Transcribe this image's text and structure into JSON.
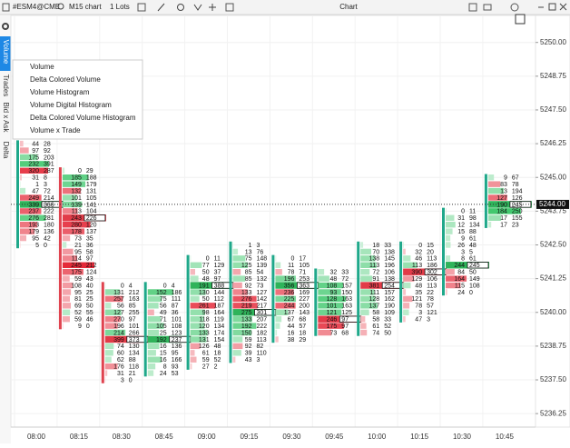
{
  "toolbar": {
    "symbol": "#ESM4@CME",
    "timeframe": "M15 chart",
    "lots": "1 Lots",
    "title": "Chart"
  },
  "side_tabs": [
    "Volume",
    "Trades",
    "Bid x Ask",
    "Delta"
  ],
  "menu": [
    "Volume",
    "Delta Colored Volume",
    "Volume Histogram",
    "Volume Digital Histogram",
    "Delta Colored Volume Histogram",
    "Volume x Trade"
  ],
  "chart_data": {
    "type": "footprint",
    "categories": [
      "08:00",
      "08:15",
      "08:30",
      "08:45",
      "09:00",
      "09:15",
      "09:30",
      "09:45",
      "10:00",
      "10:15",
      "10:30",
      "10:45"
    ],
    "ylim": [
      5235.75,
      5251
    ],
    "yticks": [
      {
        "value": 5250,
        "label": "5250.00"
      },
      {
        "value": 5248.75,
        "label": "5248.75"
      },
      {
        "value": 5247.5,
        "label": "5247.50"
      },
      {
        "value": 5246.25,
        "label": "5246.25"
      },
      {
        "value": 5245,
        "label": "5245.00"
      },
      {
        "value": 5243.75,
        "label": "5243.75"
      },
      {
        "value": 5242.5,
        "label": "5242.50"
      },
      {
        "value": 5241.25,
        "label": "5241.25"
      },
      {
        "value": 5240,
        "label": "5240.00"
      },
      {
        "value": 5238.75,
        "label": "5238.75"
      },
      {
        "value": 5237.5,
        "label": "5237.50"
      },
      {
        "value": 5236.25,
        "label": "5236.25"
      }
    ],
    "tick_size": 0.25,
    "current_price": {
      "value": 5244,
      "label": "5244.00"
    },
    "clusters": [
      {
        "top": 5246.25,
        "rows": [
          [
            44,
            28
          ],
          [
            97,
            92
          ],
          [
            175,
            203
          ],
          [
            232,
            391
          ],
          [
            320,
            287
          ],
          [
            31,
            8
          ],
          [
            1,
            3
          ],
          [
            47,
            72
          ],
          [
            249,
            214
          ],
          [
            339,
            366
          ],
          [
            237,
            222
          ],
          [
            276,
            281
          ],
          [
            193,
            180
          ],
          [
            179,
            136
          ],
          [
            95,
            42
          ],
          [
            5,
            0
          ]
        ]
      },
      {
        "top": 5245.25,
        "rows": [
          [
            0,
            29
          ],
          [
            185,
            188
          ],
          [
            149,
            179
          ],
          [
            132,
            131
          ],
          [
            101,
            105
          ],
          [
            139,
            141
          ],
          [
            113,
            104
          ],
          [
            243,
            226
          ],
          [
            280,
            120
          ],
          [
            178,
            137
          ],
          [
            73,
            35
          ],
          [
            21,
            36
          ],
          [
            95,
            58
          ],
          [
            114,
            97
          ],
          [
            245,
            212
          ],
          [
            175,
            124
          ],
          [
            59,
            43
          ],
          [
            108,
            40
          ],
          [
            95,
            25
          ],
          [
            81,
            25
          ],
          [
            69,
            50
          ],
          [
            52,
            55
          ],
          [
            59,
            46
          ],
          [
            9,
            0
          ]
        ]
      },
      {
        "top": 5241,
        "rows": [
          [
            0,
            4
          ],
          [
            131,
            212
          ],
          [
            257,
            163
          ],
          [
            56,
            85
          ],
          [
            127,
            255
          ],
          [
            270,
            97
          ],
          [
            196,
            101
          ],
          [
            214,
            266
          ],
          [
            399,
            373
          ],
          [
            74,
            130
          ],
          [
            60,
            134
          ],
          [
            62,
            88
          ],
          [
            176,
            118
          ],
          [
            31,
            21
          ],
          [
            3,
            0
          ]
        ]
      },
      {
        "top": 5241,
        "rows": [
          [
            0,
            4
          ],
          [
            152,
            186
          ],
          [
            75,
            111
          ],
          [
            56,
            87
          ],
          [
            49,
            36
          ],
          [
            71,
            101
          ],
          [
            105,
            108
          ],
          [
            25,
            123
          ],
          [
            192,
            237
          ],
          [
            16,
            136
          ],
          [
            15,
            95
          ],
          [
            16,
            166
          ],
          [
            8,
            93
          ],
          [
            24,
            53
          ]
        ]
      },
      {
        "top": 5242,
        "rows": [
          [
            0,
            11
          ],
          [
            77,
            129
          ],
          [
            50,
            37
          ],
          [
            48,
            97
          ],
          [
            191,
            388
          ],
          [
            130,
            144
          ],
          [
            50,
            112
          ],
          [
            261,
            187
          ],
          [
            98,
            164
          ],
          [
            118,
            119
          ],
          [
            120,
            134
          ],
          [
            133,
            174
          ],
          [
            131,
            154
          ],
          [
            126,
            48
          ],
          [
            61,
            18
          ],
          [
            59,
            52
          ],
          [
            27,
            2
          ]
        ]
      },
      {
        "top": 5242.5,
        "rows": [
          [
            1,
            3
          ],
          [
            13,
            76
          ],
          [
            75,
            148
          ],
          [
            125,
            139
          ],
          [
            85,
            54
          ],
          [
            85,
            132
          ],
          [
            92,
            73
          ],
          [
            133,
            127
          ],
          [
            276,
            142
          ],
          [
            219,
            217
          ],
          [
            275,
            301
          ],
          [
            133,
            207
          ],
          [
            192,
            222
          ],
          [
            150,
            182
          ],
          [
            59,
            113
          ],
          [
            92,
            82
          ],
          [
            39,
            110
          ],
          [
            43,
            3
          ]
        ]
      },
      {
        "top": 5242,
        "rows": [
          [
            0,
            17
          ],
          [
            11,
            105
          ],
          [
            78,
            71
          ],
          [
            196,
            253
          ],
          [
            356,
            363
          ],
          [
            236,
            169
          ],
          [
            225,
            227
          ],
          [
            244,
            200
          ],
          [
            137,
            143
          ],
          [
            67,
            68
          ],
          [
            44,
            57
          ],
          [
            16,
            18
          ],
          [
            38,
            29
          ]
        ]
      },
      {
        "top": 5241.5,
        "rows": [
          [
            32,
            33
          ],
          [
            48,
            72
          ],
          [
            108,
            157
          ],
          [
            93,
            150
          ],
          [
            128,
            163
          ],
          [
            101,
            163
          ],
          [
            121,
            125
          ],
          [
            246,
            97
          ],
          [
            175,
            97
          ],
          [
            73,
            68
          ]
        ]
      },
      {
        "top": 5242.5,
        "rows": [
          [
            18,
            33
          ],
          [
            70,
            138
          ],
          [
            138,
            145
          ],
          [
            113,
            196
          ],
          [
            72,
            106
          ],
          [
            91,
            138
          ],
          [
            381,
            254
          ],
          [
            111,
            157
          ],
          [
            128,
            162
          ],
          [
            137,
            190
          ],
          [
            58,
            109
          ],
          [
            58,
            33
          ],
          [
            61,
            52
          ],
          [
            74,
            50
          ]
        ]
      },
      {
        "top": 5242.5,
        "rows": [
          [
            0,
            15
          ],
          [
            32,
            20
          ],
          [
            46,
            113
          ],
          [
            113,
            186
          ],
          [
            390,
            302
          ],
          [
            129,
            106
          ],
          [
            48,
            113
          ],
          [
            35,
            22
          ],
          [
            121,
            78
          ],
          [
            78,
            57
          ],
          [
            3,
            121
          ],
          [
            47,
            3
          ]
        ]
      },
      {
        "top": 5243.75,
        "rows": [
          [
            0,
            11
          ],
          [
            31,
            98
          ],
          [
            12,
            134
          ],
          [
            15,
            88
          ],
          [
            9,
            61
          ],
          [
            26,
            48
          ],
          [
            3,
            5
          ],
          [
            8,
            61
          ],
          [
            244,
            245
          ],
          [
            84,
            50
          ],
          [
            164,
            149
          ],
          [
            115,
            108
          ],
          [
            24,
            0
          ]
        ]
      },
      {
        "top": 5245,
        "rows": [
          [
            9,
            67
          ],
          [
            83,
            78
          ],
          [
            13,
            194
          ],
          [
            127,
            126
          ],
          [
            190,
            245
          ],
          [
            184,
            250
          ],
          [
            17,
            155
          ],
          [
            17,
            23
          ]
        ]
      }
    ]
  }
}
